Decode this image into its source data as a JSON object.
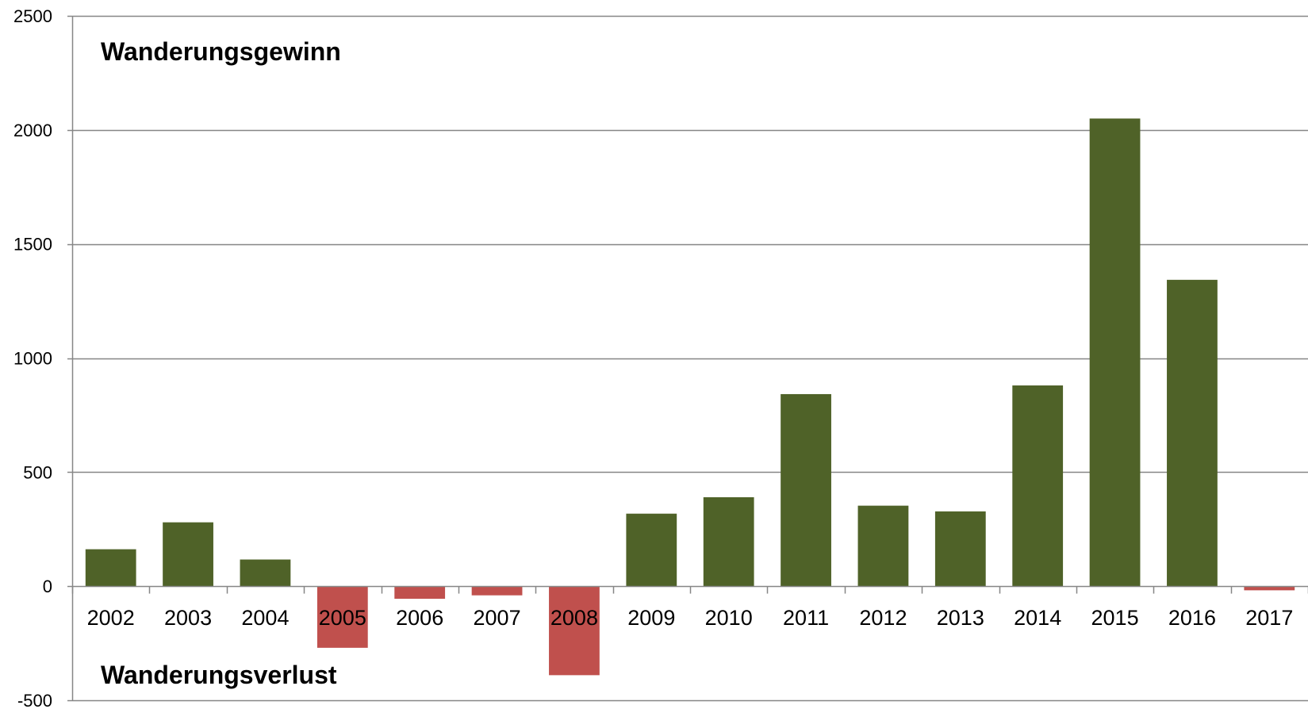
{
  "chart_data": {
    "type": "bar",
    "title": "",
    "xlabel": "",
    "ylabel": "",
    "categories": [
      "2002",
      "2003",
      "2004",
      "2005",
      "2006",
      "2007",
      "2008",
      "2009",
      "2010",
      "2011",
      "2012",
      "2013",
      "2014",
      "2015",
      "2016",
      "2017"
    ],
    "values": [
      162,
      280,
      117,
      -270,
      -55,
      -40,
      -390,
      318,
      390,
      842,
      353,
      328,
      880,
      2050,
      1343,
      -18
    ],
    "ylim": [
      -500,
      2500
    ],
    "yticks": [
      -500,
      0,
      500,
      1000,
      1500,
      2000,
      2500
    ],
    "grid": true,
    "legend": "none",
    "annotations": {
      "gain": "Wanderungsgewinn",
      "loss": "Wanderungsverlust"
    },
    "colors": {
      "positive": "#4F6228",
      "negative": "#C0504D",
      "grid": "#868686",
      "axis": "#868686"
    }
  }
}
